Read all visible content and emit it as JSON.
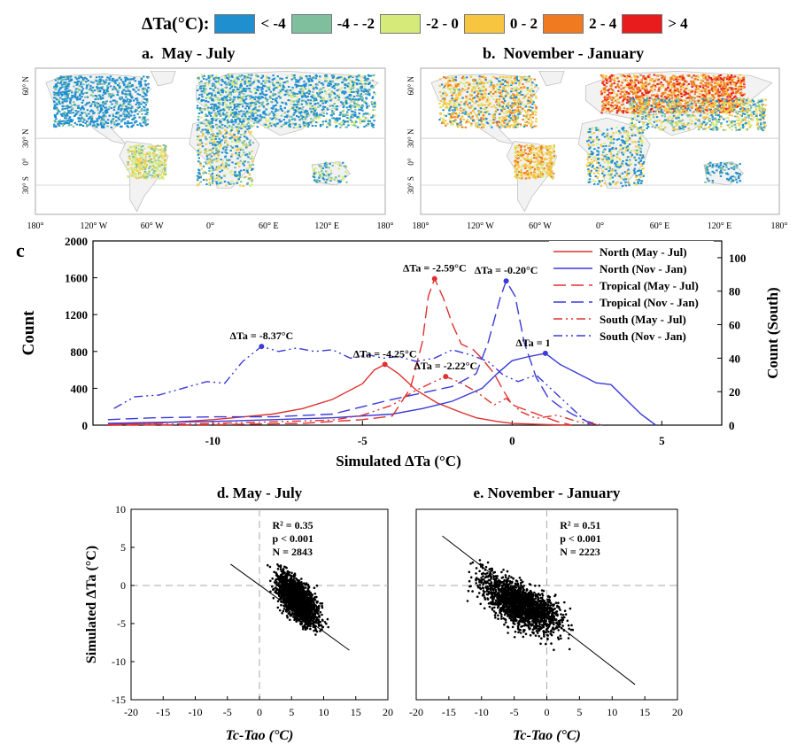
{
  "legend": {
    "title": "ΔTa(°C):",
    "items": [
      {
        "label": "< -4",
        "color": "#1f8fd0"
      },
      {
        "label": "-4 - -2",
        "color": "#7fbf9e"
      },
      {
        "label": "-2 - 0",
        "color": "#d6ea7a"
      },
      {
        "label": "0 - 2",
        "color": "#f7c540"
      },
      {
        "label": "2 - 4",
        "color": "#f07a20"
      },
      {
        "label": "> 4",
        "color": "#e81c1c"
      }
    ]
  },
  "maps": {
    "a": {
      "letter": "a.",
      "title": "May - July"
    },
    "b": {
      "letter": "b.",
      "title": "November - January"
    },
    "lat_labels": [
      "60° N",
      "30° N",
      "0°",
      "30° S"
    ],
    "lon_labels": [
      "180°",
      "120° W",
      "60° W",
      "0°",
      "60° E",
      "120° E",
      "180°"
    ]
  },
  "chart_data": [
    {
      "panel": "c",
      "type": "line",
      "xlabel": "Simulated ΔTa (°C)",
      "ylabel": "Count",
      "y2label": "Count (South)",
      "xlim": [
        -14,
        7
      ],
      "ylim": [
        0,
        2000
      ],
      "y2lim": [
        0,
        110
      ],
      "xticks": [
        -10,
        -5,
        0,
        5
      ],
      "yticks": [
        0,
        400,
        800,
        1200,
        1600,
        2000
      ],
      "y2ticks": [
        0,
        20,
        40,
        60,
        80,
        100
      ],
      "series": [
        {
          "name": "North (May - Jul)",
          "color": "#e03030",
          "dash": "",
          "axis": "left",
          "x": [
            -13.5,
            -12,
            -10,
            -8,
            -7,
            -6,
            -5,
            -4.6,
            -4.25,
            -3.8,
            -3.2,
            -2.5,
            -1.8,
            -1.2,
            -0.5,
            0,
            1,
            2
          ],
          "y": [
            10,
            20,
            60,
            120,
            180,
            280,
            450,
            600,
            660,
            560,
            380,
            240,
            150,
            80,
            40,
            20,
            8,
            0
          ]
        },
        {
          "name": "North (Nov - Jan)",
          "color": "#3a3ad8",
          "dash": "",
          "axis": "left",
          "x": [
            -13.5,
            -12,
            -10,
            -8,
            -6,
            -4,
            -3,
            -2,
            -1,
            -0.5,
            0,
            0.5,
            1.11,
            1.6,
            2.2,
            2.8,
            3.3,
            3.8,
            4.3,
            4.8
          ],
          "y": [
            20,
            30,
            40,
            60,
            80,
            120,
            180,
            260,
            400,
            560,
            700,
            740,
            780,
            660,
            560,
            460,
            440,
            280,
            120,
            0
          ]
        },
        {
          "name": "Tropical (May - Jul)",
          "color": "#e03030",
          "dash": "14,6",
          "axis": "left",
          "x": [
            -13.5,
            -10,
            -7,
            -5,
            -4,
            -3.4,
            -3,
            -2.8,
            -2.59,
            -2.3,
            -2,
            -1.7,
            -1.3,
            -1,
            -0.6,
            -0.3,
            0,
            0.5,
            1,
            1.5,
            2
          ],
          "y": [
            0,
            5,
            20,
            60,
            100,
            400,
            900,
            1400,
            1590,
            1380,
            1100,
            880,
            820,
            720,
            560,
            380,
            220,
            160,
            100,
            40,
            0
          ]
        },
        {
          "name": "Tropical (Nov - Jan)",
          "color": "#3a3ad8",
          "dash": "14,6",
          "axis": "left",
          "x": [
            -13.5,
            -12,
            -10,
            -8,
            -6,
            -4,
            -2,
            -1.2,
            -0.8,
            -0.4,
            -0.2,
            0.1,
            0.4,
            0.8,
            1.2,
            1.6,
            2,
            2.5,
            3
          ],
          "y": [
            60,
            80,
            90,
            90,
            120,
            280,
            420,
            560,
            900,
            1380,
            1565,
            1400,
            900,
            520,
            300,
            200,
            120,
            40,
            0
          ]
        },
        {
          "name": "South (May - Jul)",
          "color": "#e03030",
          "dash": "10,4,2,4,2,4",
          "axis": "right",
          "x": [
            -13.5,
            -10,
            -6,
            -5,
            -4,
            -3.3,
            -2.6,
            -2.22,
            -1.8,
            -1.2,
            -0.6,
            -0.2,
            0.3,
            0.8,
            1.5,
            2.2,
            3
          ],
          "y": [
            0,
            1,
            3,
            6,
            12,
            20,
            26,
            29,
            26,
            20,
            12,
            16,
            8,
            4,
            6,
            2,
            0
          ]
        },
        {
          "name": "South (Nov - Jan)",
          "color": "#3a3ad8",
          "dash": "10,4,2,4,2,4",
          "axis": "right",
          "x": [
            -13.3,
            -12.6,
            -11.8,
            -11,
            -10.2,
            -9.6,
            -9,
            -8.37,
            -7.8,
            -7.2,
            -6.6,
            -6,
            -5.4,
            -4.8,
            -4.3,
            -3.8,
            -3.2,
            -2.6,
            -2,
            -1.4,
            -0.8,
            -0.3,
            0.2,
            0.8,
            1.4,
            2,
            2.6
          ],
          "y": [
            10,
            17,
            18,
            22,
            26,
            25,
            38,
            47,
            44,
            46,
            44,
            45,
            40,
            42,
            40,
            41,
            38,
            40,
            45,
            42,
            38,
            30,
            26,
            30,
            20,
            10,
            0
          ]
        }
      ],
      "annotations": [
        {
          "text": "ΔTa = -8.37°C",
          "x": -8.37,
          "y": 47,
          "axis": "right",
          "color": "#3a3ad8"
        },
        {
          "text": "ΔTa = -4.25°C",
          "x": -4.25,
          "y": 660,
          "axis": "left",
          "color": "#e03030"
        },
        {
          "text": "ΔTa = -2.59°C",
          "x": -2.59,
          "y": 1590,
          "axis": "left",
          "color": "#e03030"
        },
        {
          "text": "ΔTa = -2.22°C",
          "x": -2.22,
          "y": 29,
          "axis": "right",
          "color": "#e03030"
        },
        {
          "text": "ΔTa = -0.20°C",
          "x": -0.2,
          "y": 1565,
          "axis": "left",
          "color": "#3a3ad8"
        },
        {
          "text": "ΔTa = 1.11°C",
          "x": 1.11,
          "y": 780,
          "axis": "left",
          "color": "#3a3ad8"
        }
      ]
    },
    {
      "panel": "d",
      "type": "scatter",
      "title": "d. May - July",
      "xlabel": "Tc-Tao (°C)",
      "ylabel": "Simulated ΔTa (°C)",
      "xlim": [
        -20,
        20
      ],
      "ylim": [
        -15,
        10
      ],
      "xticks": [
        -20,
        -15,
        -10,
        -5,
        0,
        5,
        10,
        15,
        20
      ],
      "yticks": [
        -15,
        -10,
        -5,
        0,
        5,
        10
      ],
      "stats": [
        "R² = 0.35",
        "p < 0.001",
        "N = 2843"
      ],
      "fit": {
        "x": [
          -4.5,
          14
        ],
        "y": [
          2.8,
          -8.5
        ]
      },
      "cloud": {
        "x_range": [
          -1,
          13
        ],
        "center": [
          6,
          -4
        ],
        "n": 2843
      }
    },
    {
      "panel": "e",
      "type": "scatter",
      "title": "e. November - January",
      "xlabel": "Tc-Tao (°C)",
      "ylabel": "",
      "xlim": [
        -20,
        20
      ],
      "ylim": [
        -15,
        10
      ],
      "xticks": [
        -20,
        -15,
        -10,
        -5,
        0,
        5,
        10,
        15,
        20
      ],
      "yticks": [
        -15,
        -10,
        -5,
        0,
        5,
        10
      ],
      "stats": [
        "R² = 0.51",
        "p < 0.001",
        "N = 2223"
      ],
      "fit": {
        "x": [
          -16,
          13.5
        ],
        "y": [
          6.5,
          -13
        ]
      },
      "cloud": {
        "x_range": [
          -16,
          12
        ],
        "center": [
          -5,
          -2
        ],
        "n": 2223
      }
    }
  ]
}
